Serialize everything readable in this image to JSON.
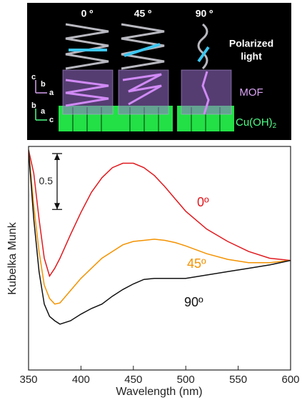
{
  "illustration": {
    "angles": [
      "0 º",
      "45 º",
      "90 º"
    ],
    "light_label": [
      "Polarized",
      "light"
    ],
    "film_label": "MOF",
    "substrate_label": {
      "text": "Cu(OH)",
      "subscript": "2"
    },
    "axes_top": [
      "c",
      "b",
      "a"
    ],
    "axes_bottom": [
      "b",
      "a",
      "c"
    ]
  },
  "chart_data": {
    "type": "line",
    "x_label": "Wavelength (nm)",
    "y_label": "Kubelka Munk",
    "x": [
      350,
      355,
      360,
      365,
      370,
      375,
      380,
      390,
      400,
      410,
      420,
      430,
      440,
      450,
      460,
      470,
      480,
      490,
      500,
      520,
      540,
      560,
      580,
      600
    ],
    "xlim": [
      350,
      600
    ],
    "xticks": [
      350,
      400,
      450,
      500,
      550,
      600
    ],
    "ylim": [
      0,
      2
    ],
    "scale_bar": 0.5,
    "series": [
      {
        "name": "0º",
        "color": "#e0191e",
        "values": [
          1.97,
          1.76,
          1.35,
          1.0,
          0.84,
          0.91,
          1.0,
          1.21,
          1.41,
          1.59,
          1.72,
          1.81,
          1.85,
          1.85,
          1.81,
          1.74,
          1.64,
          1.53,
          1.42,
          1.26,
          1.15,
          1.06,
          1.0,
          0.98
        ]
      },
      {
        "name": "45º",
        "color": "#f39200",
        "values": [
          1.97,
          1.47,
          1.06,
          0.76,
          0.64,
          0.59,
          0.6,
          0.71,
          0.82,
          0.91,
          1.0,
          1.06,
          1.12,
          1.15,
          1.16,
          1.17,
          1.16,
          1.14,
          1.11,
          1.04,
          0.99,
          0.96,
          0.96,
          0.98
        ]
      },
      {
        "name": "90º",
        "color": "#111111",
        "values": [
          1.97,
          1.35,
          0.88,
          0.59,
          0.48,
          0.44,
          0.41,
          0.44,
          0.5,
          0.55,
          0.59,
          0.66,
          0.72,
          0.77,
          0.81,
          0.82,
          0.82,
          0.82,
          0.82,
          0.85,
          0.88,
          0.91,
          0.94,
          0.98
        ]
      }
    ]
  }
}
